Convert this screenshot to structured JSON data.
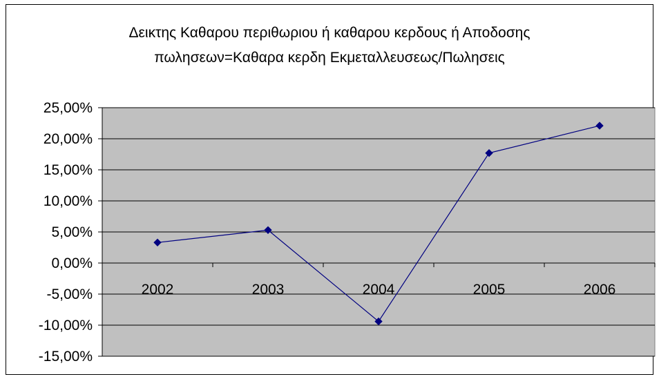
{
  "chart_data": {
    "type": "line",
    "title_lines": [
      "Δεικτης Καθαρου περιθωριου ή καθαρου κερδους ή Αποδοσης",
      "πωλησεων=Καθαρα κερδη Εκμεταλλευσεως/Πωλησεις"
    ],
    "categories": [
      "2002",
      "2003",
      "2004",
      "2005",
      "2006"
    ],
    "values": [
      3.3,
      5.3,
      -9.4,
      17.7,
      22.1
    ],
    "ylim": [
      -15,
      25
    ],
    "yticks": [
      25,
      20,
      15,
      10,
      5,
      0,
      -5,
      -10,
      -15
    ],
    "ytick_labels": [
      "25,00%",
      "20,00%",
      "15,00%",
      "10,00%",
      "5,00%",
      "0,00%",
      "-5,00%",
      "-10,00%",
      "-15,00%"
    ],
    "grid": true,
    "legend": "none",
    "colors": {
      "plot_bg": "#c0c0c0",
      "line": "#000080",
      "marker": "#000080",
      "grid": "#000000"
    }
  }
}
